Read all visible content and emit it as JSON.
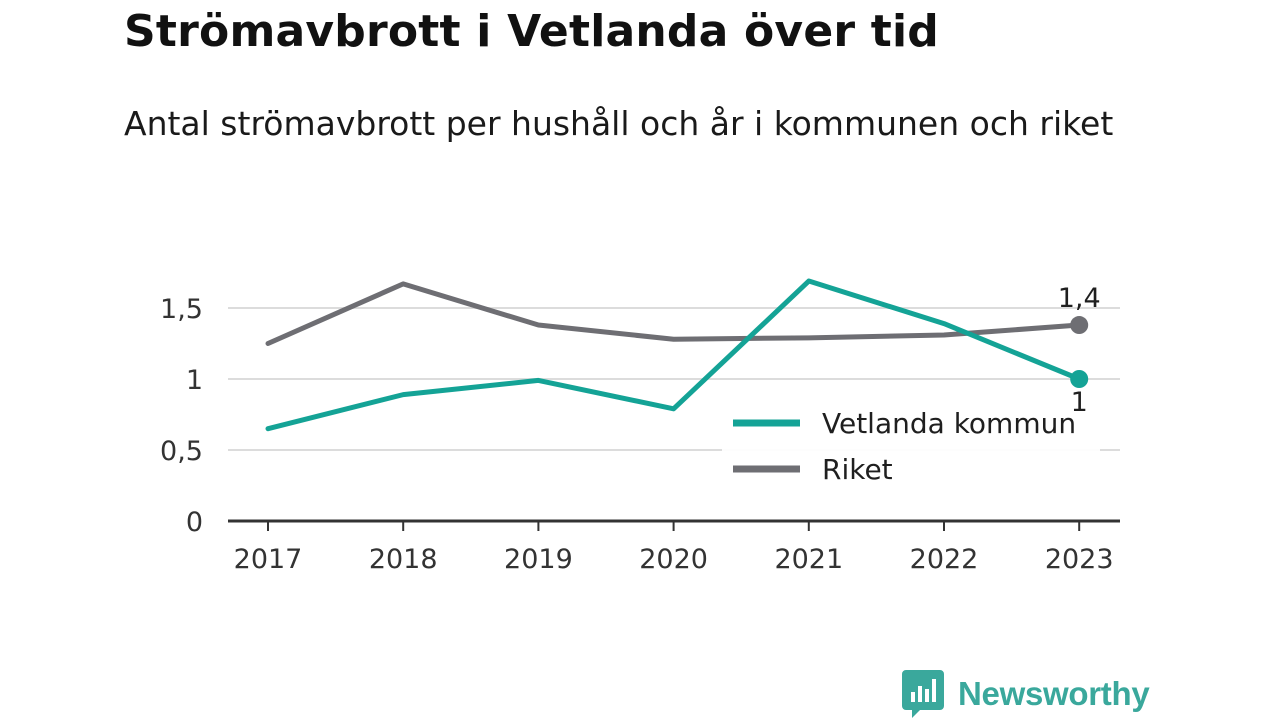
{
  "title": "Strömavbrott i Vetlanda över tid",
  "subtitle": "Antal strömavbrott per hushåll och år i kommunen och riket",
  "brand": {
    "name": "Newsworthy",
    "icon": "newsworthy-logo-icon",
    "color": "#3aa89c"
  },
  "chart_data": {
    "type": "line",
    "x": [
      "2017",
      "2018",
      "2019",
      "2020",
      "2021",
      "2022",
      "2023"
    ],
    "ylim": [
      0,
      1.9
    ],
    "yticks": [
      {
        "value": 0,
        "label": "0"
      },
      {
        "value": 0.5,
        "label": "0,5"
      },
      {
        "value": 1,
        "label": "1"
      },
      {
        "value": 1.5,
        "label": "1,5"
      }
    ],
    "grid": true,
    "legend_position": "lower-right",
    "series": [
      {
        "name": "Vetlanda kommun",
        "color": "#14a396",
        "values": [
          0.65,
          0.89,
          0.99,
          0.79,
          1.69,
          1.39,
          1.0
        ],
        "end_label": "1"
      },
      {
        "name": "Riket",
        "color": "#6e6e73",
        "values": [
          1.25,
          1.67,
          1.38,
          1.28,
          1.29,
          1.31,
          1.38
        ],
        "end_label": "1,4"
      }
    ]
  }
}
